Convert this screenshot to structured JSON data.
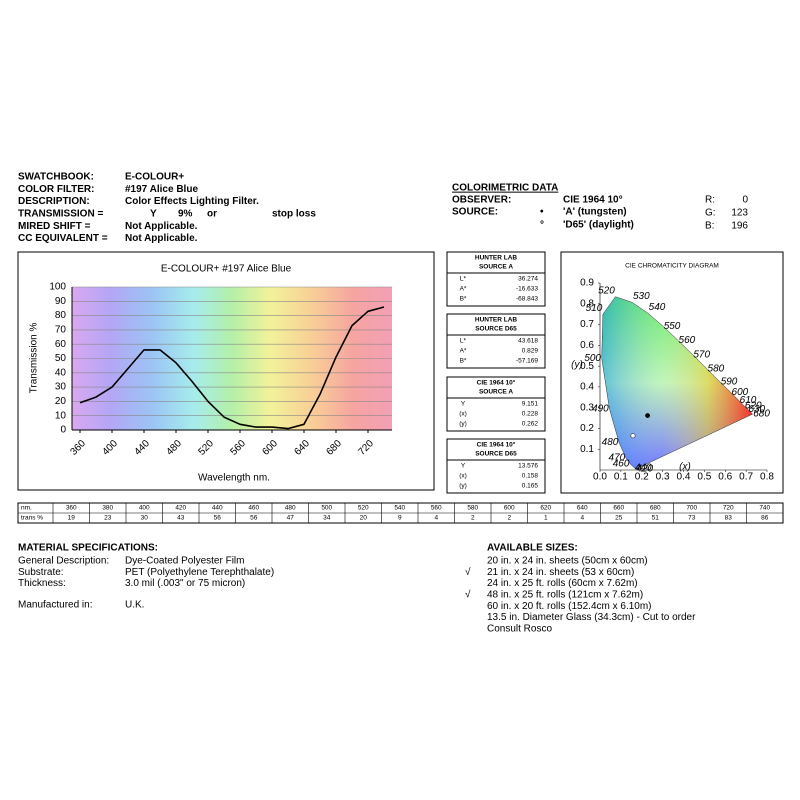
{
  "header": {
    "rows": [
      {
        "label": "SWATCHBOOK:",
        "value": "E-COLOUR+"
      },
      {
        "label": "COLOR FILTER:",
        "value": "#197 Alice Blue"
      },
      {
        "label": "DESCRIPTION:",
        "value": "Color Effects Lighting Filter."
      },
      {
        "label": "TRANSMISSION =",
        "parts": [
          "Y",
          "9%",
          "or",
          "stop loss"
        ]
      },
      {
        "label": "MIRED SHIFT =",
        "value": "Not Applicable."
      },
      {
        "label": "CC EQUIVALENT =",
        "value": "Not Applicable."
      }
    ]
  },
  "colorimetric": {
    "title": "COLORIMETRIC DATA",
    "observer_label": "OBSERVER:",
    "observer": "CIE 1964 10°",
    "source_label": "SOURCE:",
    "sources": [
      {
        "symbol": "•",
        "name": "'A' (tungsten)"
      },
      {
        "symbol": "°",
        "name": "'D65' (daylight)"
      }
    ],
    "rgb": [
      {
        "label": "R:",
        "value": 0
      },
      {
        "label": "G:",
        "value": 123
      },
      {
        "label": "B:",
        "value": 196
      }
    ]
  },
  "boxes": [
    {
      "title": [
        "HUNTER LAB",
        "SOURCE A"
      ],
      "rows": [
        [
          "L*",
          36.274
        ],
        [
          "A*",
          -16.633
        ],
        [
          "B*",
          -68.843
        ]
      ]
    },
    {
      "title": [
        "HUNTER LAB",
        "SOURCE D65"
      ],
      "rows": [
        [
          "L*",
          43.618
        ],
        [
          "A*",
          0.829
        ],
        [
          "B*",
          -57.169
        ]
      ]
    },
    {
      "title": [
        "CIE 1964 10°",
        "SOURCE A"
      ],
      "rows": [
        [
          "Y",
          9.151
        ],
        [
          "(x)",
          0.228
        ],
        [
          "(y)",
          0.262
        ]
      ]
    },
    {
      "title": [
        "CIE 1964 10°",
        "SOURCE D65"
      ],
      "rows": [
        [
          "Y",
          13.576
        ],
        [
          "(x)",
          0.158
        ],
        [
          "(y)",
          0.165
        ]
      ]
    }
  ],
  "table": {
    "headers": [
      "nm.",
      "trans %"
    ]
  },
  "chart_data": [
    {
      "type": "line",
      "title": "E-COLOUR+ #197 Alice Blue",
      "x_label": "Wavelength nm.",
      "y_label": "Transmission %",
      "x": [
        360,
        380,
        400,
        420,
        440,
        460,
        480,
        500,
        520,
        540,
        560,
        580,
        600,
        620,
        640,
        660,
        680,
        700,
        720,
        740
      ],
      "values": [
        19,
        23,
        30,
        43,
        56,
        56,
        47,
        34,
        20,
        9,
        4,
        2,
        2,
        1,
        4,
        25,
        51,
        73,
        83,
        86
      ],
      "color": "#000000",
      "xlim": [
        350,
        750
      ],
      "xticks": [
        360,
        400,
        440,
        480,
        520,
        560,
        600,
        640,
        680,
        720
      ],
      "ylim": [
        0,
        100
      ],
      "yticks": [
        0,
        10,
        20,
        30,
        40,
        50,
        60,
        70,
        80,
        90,
        100
      ],
      "grid": true
    },
    {
      "type": "scatter",
      "title": "CIE CHROMATICITY DIAGRAM",
      "x_label": "(x)",
      "y_label": "(y)",
      "xlim": [
        0,
        0.8
      ],
      "ylim": [
        0,
        0.9
      ],
      "xticks": [
        {
          "value": 0,
          "label": "0.0"
        },
        0.1,
        0.2,
        0.3,
        0.4,
        0.5,
        0.6,
        0.7,
        0.8
      ],
      "yticks": [
        0.1,
        0.2,
        0.3,
        0.4,
        0.5,
        0.6,
        0.7,
        0.8,
        0.9
      ],
      "locus_labels": [
        420,
        440,
        460,
        470,
        480,
        490,
        500,
        510,
        520,
        530,
        540,
        550,
        560,
        570,
        580,
        590,
        600,
        610,
        620,
        630,
        680
      ],
      "series": [
        {
          "color": "#000000",
          "x": [
            0.228
          ],
          "values": [
            0.262
          ]
        },
        {
          "color": "#ffffff",
          "x": [
            0.158
          ],
          "values": [
            0.165
          ]
        }
      ]
    }
  ],
  "material": {
    "title": "MATERIAL SPECIFICATIONS:",
    "rows": [
      [
        "General Description:",
        "Dye-Coated Polyester Film"
      ],
      [
        "Substrate:",
        "PET (Polyethylene Terephthalate)"
      ],
      [
        "Thickness:",
        "3.0 mil (.003\" or 75 micron)"
      ],
      [
        "Manufactured in:",
        "U.K."
      ]
    ]
  },
  "sizes": {
    "title": "AVAILABLE SIZES:",
    "items": [
      {
        "text": "20 in. x 24 in. sheets (50cm x 60cm)"
      },
      {
        "check": "√",
        "text": "21 in. x 24 in. sheets (53 x 60cm)"
      },
      {
        "text": "24 in. x 25 ft. rolls (60cm x 7.62m)"
      },
      {
        "check": "√",
        "text": "48 in. x 25 ft. rolls (121cm x 7.62m)"
      },
      {
        "text": "60 in. x 20 ft. rolls (152.4cm x 6.10m)"
      },
      {
        "text": "13.5 in. Diameter Glass (34.3cm) - Cut to order"
      },
      {
        "text": "Consult Rosco"
      }
    ]
  }
}
